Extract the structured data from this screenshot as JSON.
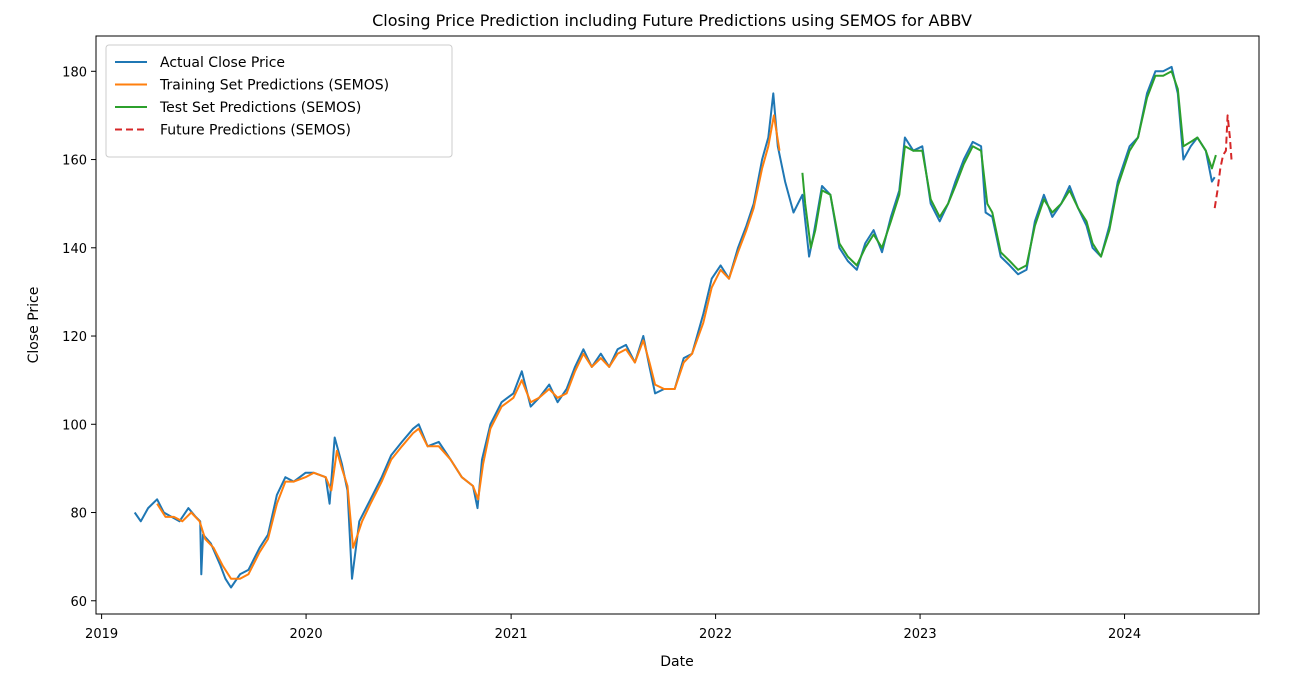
{
  "chart_data": {
    "type": "line",
    "title": "Closing Price Prediction including Future Predictions using SEMOS for ABBV",
    "xlabel": "Date",
    "ylabel": "Close Price",
    "xlim": [
      "2018-12-22",
      "2024-08-28"
    ],
    "ylim": [
      57,
      188
    ],
    "x_ticks": [
      {
        "date": "2019-01-01",
        "label": "2019"
      },
      {
        "date": "2020-01-01",
        "label": "2020"
      },
      {
        "date": "2021-01-01",
        "label": "2021"
      },
      {
        "date": "2022-01-01",
        "label": "2022"
      },
      {
        "date": "2023-01-01",
        "label": "2023"
      },
      {
        "date": "2024-01-01",
        "label": "2024"
      }
    ],
    "y_ticks": [
      60,
      80,
      100,
      120,
      140,
      160,
      180
    ],
    "grid": false,
    "legend_position": "top-left",
    "series": [
      {
        "name": "Actual Close Price",
        "color": "#1f77b4",
        "dash": "solid",
        "points": [
          [
            "2019-03-01",
            80
          ],
          [
            "2019-03-12",
            78
          ],
          [
            "2019-03-25",
            81
          ],
          [
            "2019-04-10",
            83
          ],
          [
            "2019-04-22",
            80
          ],
          [
            "2019-05-06",
            79
          ],
          [
            "2019-05-20",
            78
          ],
          [
            "2019-06-05",
            81
          ],
          [
            "2019-06-18",
            79
          ],
          [
            "2019-06-26",
            78
          ],
          [
            "2019-06-28",
            66
          ],
          [
            "2019-07-01",
            75
          ],
          [
            "2019-07-15",
            73
          ],
          [
            "2019-08-01",
            68
          ],
          [
            "2019-08-10",
            65
          ],
          [
            "2019-08-20",
            63
          ],
          [
            "2019-09-05",
            66
          ],
          [
            "2019-09-20",
            67
          ],
          [
            "2019-10-10",
            72
          ],
          [
            "2019-10-25",
            75
          ],
          [
            "2019-11-10",
            84
          ],
          [
            "2019-11-25",
            88
          ],
          [
            "2019-12-10",
            87
          ],
          [
            "2019-12-31",
            89
          ],
          [
            "2020-01-15",
            89
          ],
          [
            "2020-02-05",
            88
          ],
          [
            "2020-02-12",
            82
          ],
          [
            "2020-02-21",
            97
          ],
          [
            "2020-03-05",
            91
          ],
          [
            "2020-03-15",
            85
          ],
          [
            "2020-03-23",
            65
          ],
          [
            "2020-04-05",
            78
          ],
          [
            "2020-04-25",
            83
          ],
          [
            "2020-05-15",
            88
          ],
          [
            "2020-06-01",
            93
          ],
          [
            "2020-06-20",
            96
          ],
          [
            "2020-07-10",
            99
          ],
          [
            "2020-07-20",
            100
          ],
          [
            "2020-08-05",
            95
          ],
          [
            "2020-08-25",
            96
          ],
          [
            "2020-09-15",
            92
          ],
          [
            "2020-10-05",
            88
          ],
          [
            "2020-10-25",
            86
          ],
          [
            "2020-11-02",
            81
          ],
          [
            "2020-11-10",
            92
          ],
          [
            "2020-11-25",
            100
          ],
          [
            "2020-12-15",
            105
          ],
          [
            "2021-01-05",
            107
          ],
          [
            "2021-01-20",
            112
          ],
          [
            "2021-02-05",
            104
          ],
          [
            "2021-02-20",
            106
          ],
          [
            "2021-03-10",
            109
          ],
          [
            "2021-03-25",
            105
          ],
          [
            "2021-04-10",
            108
          ],
          [
            "2021-04-25",
            113
          ],
          [
            "2021-05-10",
            117
          ],
          [
            "2021-05-25",
            113
          ],
          [
            "2021-06-10",
            116
          ],
          [
            "2021-06-25",
            113
          ],
          [
            "2021-07-10",
            117
          ],
          [
            "2021-07-25",
            118
          ],
          [
            "2021-08-10",
            114
          ],
          [
            "2021-08-25",
            120
          ],
          [
            "2021-09-05",
            113
          ],
          [
            "2021-09-15",
            107
          ],
          [
            "2021-10-01",
            108
          ],
          [
            "2021-10-20",
            108
          ],
          [
            "2021-11-05",
            115
          ],
          [
            "2021-11-20",
            116
          ],
          [
            "2021-12-10",
            125
          ],
          [
            "2021-12-25",
            133
          ],
          [
            "2022-01-10",
            136
          ],
          [
            "2022-01-25",
            133
          ],
          [
            "2022-02-10",
            140
          ],
          [
            "2022-02-25",
            145
          ],
          [
            "2022-03-10",
            150
          ],
          [
            "2022-03-25",
            160
          ],
          [
            "2022-04-05",
            165
          ],
          [
            "2022-04-14",
            175
          ],
          [
            "2022-04-22",
            163
          ],
          [
            "2022-05-05",
            155
          ],
          [
            "2022-05-20",
            148
          ],
          [
            "2022-06-05",
            152
          ],
          [
            "2022-06-17",
            138
          ],
          [
            "2022-06-25",
            143
          ],
          [
            "2022-07-10",
            154
          ],
          [
            "2022-07-25",
            152
          ],
          [
            "2022-08-10",
            140
          ],
          [
            "2022-08-25",
            137
          ],
          [
            "2022-09-10",
            135
          ],
          [
            "2022-09-25",
            141
          ],
          [
            "2022-10-10",
            144
          ],
          [
            "2022-10-25",
            139
          ],
          [
            "2022-11-10",
            147
          ],
          [
            "2022-11-25",
            153
          ],
          [
            "2022-12-05",
            165
          ],
          [
            "2022-12-20",
            162
          ],
          [
            "2023-01-05",
            163
          ],
          [
            "2023-01-20",
            150
          ],
          [
            "2023-02-05",
            146
          ],
          [
            "2023-02-20",
            150
          ],
          [
            "2023-03-05",
            155
          ],
          [
            "2023-03-20",
            160
          ],
          [
            "2023-04-05",
            164
          ],
          [
            "2023-04-20",
            163
          ],
          [
            "2023-04-28",
            148
          ],
          [
            "2023-05-10",
            147
          ],
          [
            "2023-05-25",
            138
          ],
          [
            "2023-06-10",
            136
          ],
          [
            "2023-06-25",
            134
          ],
          [
            "2023-07-10",
            135
          ],
          [
            "2023-07-25",
            146
          ],
          [
            "2023-08-10",
            152
          ],
          [
            "2023-08-25",
            147
          ],
          [
            "2023-09-10",
            150
          ],
          [
            "2023-09-25",
            154
          ],
          [
            "2023-10-10",
            149
          ],
          [
            "2023-10-25",
            145
          ],
          [
            "2023-11-05",
            140
          ],
          [
            "2023-11-20",
            138
          ],
          [
            "2023-12-05",
            145
          ],
          [
            "2023-12-20",
            155
          ],
          [
            "2024-01-10",
            163
          ],
          [
            "2024-01-25",
            165
          ],
          [
            "2024-02-10",
            175
          ],
          [
            "2024-02-25",
            180
          ],
          [
            "2024-03-10",
            180
          ],
          [
            "2024-03-25",
            181
          ],
          [
            "2024-04-05",
            175
          ],
          [
            "2024-04-15",
            160
          ],
          [
            "2024-04-28",
            163
          ],
          [
            "2024-05-10",
            165
          ],
          [
            "2024-05-25",
            162
          ],
          [
            "2024-06-05",
            155
          ],
          [
            "2024-06-10",
            156
          ]
        ]
      },
      {
        "name": "Training Set Predictions (SEMOS)",
        "color": "#ff7f0e",
        "dash": "solid",
        "points": [
          [
            "2019-04-10",
            82
          ],
          [
            "2019-04-25",
            79
          ],
          [
            "2019-05-10",
            79
          ],
          [
            "2019-05-25",
            78
          ],
          [
            "2019-06-10",
            80
          ],
          [
            "2019-06-25",
            78
          ],
          [
            "2019-07-05",
            74
          ],
          [
            "2019-07-20",
            72
          ],
          [
            "2019-08-05",
            68
          ],
          [
            "2019-08-20",
            65
          ],
          [
            "2019-09-05",
            65
          ],
          [
            "2019-09-20",
            66
          ],
          [
            "2019-10-10",
            71
          ],
          [
            "2019-10-25",
            74
          ],
          [
            "2019-11-10",
            82
          ],
          [
            "2019-11-25",
            87
          ],
          [
            "2019-12-10",
            87
          ],
          [
            "2019-12-31",
            88
          ],
          [
            "2020-01-15",
            89
          ],
          [
            "2020-02-05",
            88
          ],
          [
            "2020-02-15",
            85
          ],
          [
            "2020-02-25",
            94
          ],
          [
            "2020-03-05",
            90
          ],
          [
            "2020-03-15",
            86
          ],
          [
            "2020-03-25",
            72
          ],
          [
            "2020-04-10",
            78
          ],
          [
            "2020-04-25",
            82
          ],
          [
            "2020-05-15",
            87
          ],
          [
            "2020-06-01",
            92
          ],
          [
            "2020-06-20",
            95
          ],
          [
            "2020-07-10",
            98
          ],
          [
            "2020-07-20",
            99
          ],
          [
            "2020-08-05",
            95
          ],
          [
            "2020-08-25",
            95
          ],
          [
            "2020-09-15",
            92
          ],
          [
            "2020-10-05",
            88
          ],
          [
            "2020-10-25",
            86
          ],
          [
            "2020-11-03",
            83
          ],
          [
            "2020-11-12",
            91
          ],
          [
            "2020-11-25",
            99
          ],
          [
            "2020-12-15",
            104
          ],
          [
            "2021-01-05",
            106
          ],
          [
            "2021-01-20",
            110
          ],
          [
            "2021-02-05",
            105
          ],
          [
            "2021-02-20",
            106
          ],
          [
            "2021-03-10",
            108
          ],
          [
            "2021-03-25",
            106
          ],
          [
            "2021-04-10",
            107
          ],
          [
            "2021-04-25",
            112
          ],
          [
            "2021-05-10",
            116
          ],
          [
            "2021-05-25",
            113
          ],
          [
            "2021-06-10",
            115
          ],
          [
            "2021-06-25",
            113
          ],
          [
            "2021-07-10",
            116
          ],
          [
            "2021-07-25",
            117
          ],
          [
            "2021-08-10",
            114
          ],
          [
            "2021-08-25",
            119
          ],
          [
            "2021-09-05",
            114
          ],
          [
            "2021-09-15",
            109
          ],
          [
            "2021-10-01",
            108
          ],
          [
            "2021-10-20",
            108
          ],
          [
            "2021-11-05",
            114
          ],
          [
            "2021-11-20",
            116
          ],
          [
            "2021-12-10",
            123
          ],
          [
            "2021-12-25",
            131
          ],
          [
            "2022-01-10",
            135
          ],
          [
            "2022-01-25",
            133
          ],
          [
            "2022-02-10",
            139
          ],
          [
            "2022-02-25",
            144
          ],
          [
            "2022-03-10",
            149
          ],
          [
            "2022-03-25",
            158
          ],
          [
            "2022-04-05",
            163
          ],
          [
            "2022-04-15",
            170
          ],
          [
            "2022-04-25",
            162
          ]
        ]
      },
      {
        "name": "Test Set Predictions (SEMOS)",
        "color": "#2ca02c",
        "dash": "solid",
        "points": [
          [
            "2022-06-05",
            157
          ],
          [
            "2022-06-10",
            150
          ],
          [
            "2022-06-20",
            140
          ],
          [
            "2022-06-28",
            144
          ],
          [
            "2022-07-10",
            153
          ],
          [
            "2022-07-25",
            152
          ],
          [
            "2022-08-10",
            141
          ],
          [
            "2022-08-25",
            138
          ],
          [
            "2022-09-10",
            136
          ],
          [
            "2022-09-25",
            140
          ],
          [
            "2022-10-10",
            143
          ],
          [
            "2022-10-25",
            140
          ],
          [
            "2022-11-10",
            146
          ],
          [
            "2022-11-25",
            152
          ],
          [
            "2022-12-05",
            163
          ],
          [
            "2022-12-20",
            162
          ],
          [
            "2023-01-05",
            162
          ],
          [
            "2023-01-20",
            151
          ],
          [
            "2023-02-05",
            147
          ],
          [
            "2023-02-20",
            150
          ],
          [
            "2023-03-05",
            154
          ],
          [
            "2023-03-20",
            159
          ],
          [
            "2023-04-05",
            163
          ],
          [
            "2023-04-20",
            162
          ],
          [
            "2023-05-01",
            150
          ],
          [
            "2023-05-10",
            148
          ],
          [
            "2023-05-25",
            139
          ],
          [
            "2023-06-10",
            137
          ],
          [
            "2023-06-25",
            135
          ],
          [
            "2023-07-10",
            136
          ],
          [
            "2023-07-25",
            145
          ],
          [
            "2023-08-10",
            151
          ],
          [
            "2023-08-25",
            148
          ],
          [
            "2023-09-10",
            150
          ],
          [
            "2023-09-25",
            153
          ],
          [
            "2023-10-10",
            149
          ],
          [
            "2023-10-25",
            146
          ],
          [
            "2023-11-05",
            141
          ],
          [
            "2023-11-20",
            138
          ],
          [
            "2023-12-05",
            144
          ],
          [
            "2023-12-20",
            154
          ],
          [
            "2024-01-10",
            162
          ],
          [
            "2024-01-25",
            165
          ],
          [
            "2024-02-10",
            174
          ],
          [
            "2024-02-25",
            179
          ],
          [
            "2024-03-10",
            179
          ],
          [
            "2024-03-25",
            180
          ],
          [
            "2024-04-05",
            176
          ],
          [
            "2024-04-15",
            163
          ],
          [
            "2024-04-28",
            164
          ],
          [
            "2024-05-10",
            165
          ],
          [
            "2024-05-25",
            162
          ],
          [
            "2024-06-05",
            158
          ],
          [
            "2024-06-12",
            161
          ]
        ]
      },
      {
        "name": "Future Predictions (SEMOS)",
        "color": "#d62728",
        "dash": "dashed",
        "points": [
          [
            "2024-06-10",
            149
          ],
          [
            "2024-06-15",
            153
          ],
          [
            "2024-06-20",
            158
          ],
          [
            "2024-06-25",
            161
          ],
          [
            "2024-06-30",
            162
          ],
          [
            "2024-07-03",
            170
          ],
          [
            "2024-07-07",
            165
          ],
          [
            "2024-07-10",
            160
          ]
        ]
      }
    ]
  }
}
